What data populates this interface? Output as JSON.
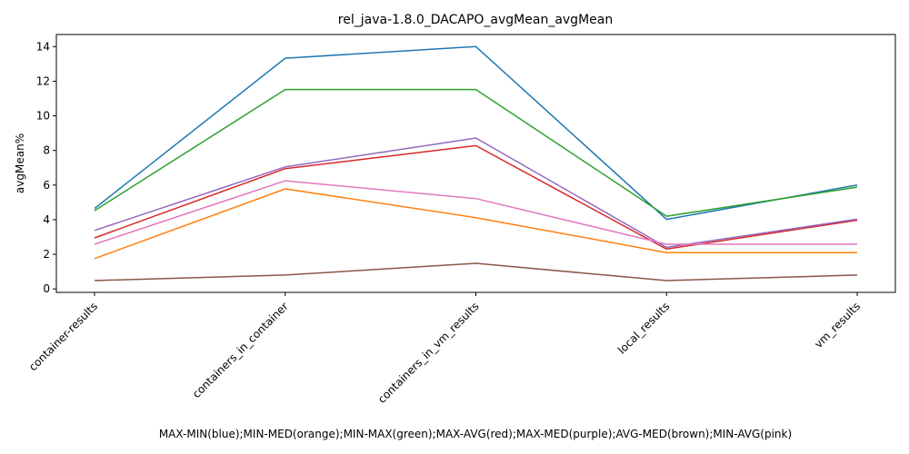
{
  "chart_data": {
    "type": "line",
    "title": "rel_java-1.8.0_DACAPO_avgMean_avgMean",
    "xlabel": "MAX-MIN(blue);MIN-MED(orange);MIN-MAX(green);MAX-AVG(red);MAX-MED(purple);AVG-MED(brown);MIN-AVG(pink)",
    "ylabel": "avgMean%",
    "categories": [
      "container-results",
      "containers_in_container",
      "containers_in_vm_results",
      "local_results",
      "vm_results"
    ],
    "ylim": [
      -0.2,
      14.7
    ],
    "yticks": [
      0,
      2,
      4,
      6,
      8,
      10,
      12,
      14
    ],
    "grid": false,
    "series": [
      {
        "color": "#1f77b4",
        "values": [
          4.65,
          13.33,
          14.0,
          4.02,
          6.0
        ]
      },
      {
        "color": "#ff7f0e",
        "values": [
          1.75,
          5.78,
          4.12,
          2.1,
          2.1
        ]
      },
      {
        "color": "#2ca02c",
        "values": [
          4.52,
          11.52,
          11.52,
          4.2,
          5.88
        ]
      },
      {
        "color": "#d62728",
        "values": [
          2.95,
          6.95,
          8.28,
          2.3,
          3.97
        ]
      },
      {
        "color": "#9467bd",
        "values": [
          3.38,
          7.05,
          8.72,
          2.4,
          4.03
        ]
      },
      {
        "color": "#8c564b",
        "values": [
          0.48,
          0.8,
          1.48,
          0.48,
          0.8
        ]
      },
      {
        "color": "#e377c2",
        "values": [
          2.58,
          6.25,
          5.22,
          2.58,
          2.58
        ]
      }
    ]
  }
}
